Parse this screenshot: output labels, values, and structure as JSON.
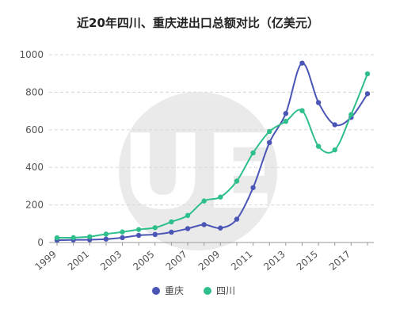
{
  "chart_data": {
    "type": "line",
    "title": "近20年四川、重庆进出口总额对比（亿美元）",
    "x": [
      1999,
      2000,
      2001,
      2002,
      2003,
      2004,
      2005,
      2006,
      2007,
      2008,
      2009,
      2010,
      2011,
      2012,
      2013,
      2014,
      2015,
      2016,
      2017,
      2018
    ],
    "x_tick_labels": [
      "1999",
      "2001",
      "2003",
      "2005",
      "2007",
      "2009",
      "2011",
      "2013",
      "2015",
      "2017"
    ],
    "x_tick_values": [
      1999,
      2001,
      2003,
      2005,
      2007,
      2009,
      2011,
      2013,
      2015,
      2017
    ],
    "y_ticks": [
      0,
      200,
      400,
      600,
      800,
      1000
    ],
    "ylim": [
      0,
      1000
    ],
    "grid": "horizontal dashed",
    "legend_position": "bottom",
    "series": [
      {
        "name": "重庆",
        "color": "#4a55b5",
        "values": [
          12,
          14,
          15,
          18,
          26,
          38,
          43,
          55,
          74,
          95,
          77,
          124,
          292,
          532,
          687,
          955,
          745,
          627,
          666,
          792
        ]
      },
      {
        "name": "四川",
        "color": "#2fbf8a",
        "values": [
          25,
          26,
          31,
          45,
          56,
          69,
          79,
          110,
          144,
          221,
          242,
          327,
          477,
          591,
          645,
          702,
          512,
          493,
          681,
          898
        ]
      }
    ]
  },
  "watermark": {
    "logo_text": "UE",
    "ring_text": "URBAN EVOLUTION"
  }
}
